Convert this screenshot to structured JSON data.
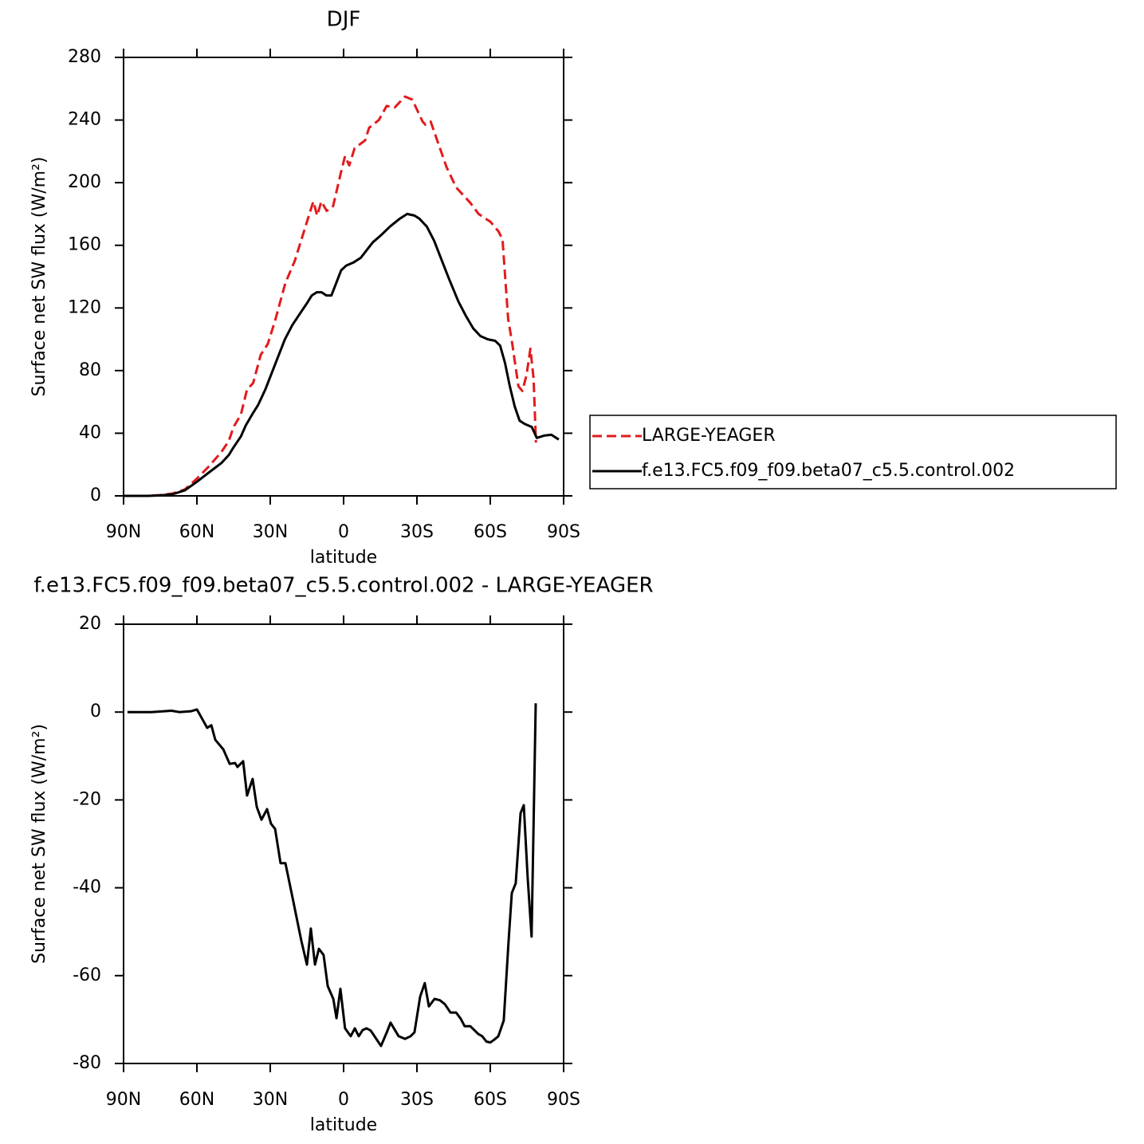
{
  "chart_data": [
    {
      "type": "line",
      "title": "DJF",
      "xlabel": "latitude",
      "ylabel": "Surface net SW flux (W/m²)",
      "xlim": [
        90,
        -90
      ],
      "xticks": [
        {
          "value": 90,
          "label": "90N"
        },
        {
          "value": 60,
          "label": "60N"
        },
        {
          "value": 30,
          "label": "30N"
        },
        0,
        {
          "value": -30,
          "label": "30S"
        },
        {
          "value": -60,
          "label": "60S"
        },
        {
          "value": -90,
          "label": "90S"
        }
      ],
      "ylim": [
        0,
        280
      ],
      "yticks": [
        0,
        40,
        80,
        120,
        160,
        200,
        240,
        280
      ],
      "legend": "right",
      "series": [
        {
          "name": "LARGE-YEAGER",
          "color": "#e31a1c",
          "dash": "dashed",
          "x": [
            90,
            80,
            75,
            70,
            65,
            60,
            55,
            50,
            47,
            45,
            42,
            39.5,
            37,
            33.9,
            31,
            28,
            23.8,
            20,
            17,
            14,
            12.4,
            10.8,
            9.1,
            6.9,
            4.3,
            1,
            -0.6,
            -2.3,
            -4.5,
            -8.8,
            -10.4,
            -14.4,
            -17.6,
            -20.9,
            -25.1,
            -28.1,
            -32.3,
            -33.5,
            -35.6,
            -42.1,
            -46,
            -51.9,
            -55.2,
            -60.1,
            -63.3,
            -65,
            -67.3,
            -68.9,
            -71.5,
            -73.1,
            -74.8,
            -76.4,
            -77.7,
            -78.7
          ],
          "values": [
            0,
            0,
            0.5,
            1.5,
            4,
            11,
            19,
            28,
            35,
            44,
            52,
            68,
            72,
            90,
            97,
            112,
            136,
            150,
            165,
            180,
            188,
            179,
            188,
            182,
            185,
            207,
            217,
            211,
            222,
            227,
            235,
            240,
            249,
            248,
            255,
            253,
            239,
            237,
            239,
            210,
            197,
            187,
            180,
            175,
            169,
            164,
            113,
            98,
            70,
            67,
            77,
            94,
            75,
            34
          ]
        },
        {
          "name": "f.e13.FC5.f09_f09.beta07_c5.5.control.002",
          "color": "#000000",
          "dash": "solid",
          "x": [
            90,
            80,
            75,
            70,
            65,
            60,
            55,
            50,
            47,
            45,
            42,
            40,
            37,
            35,
            32,
            30,
            27,
            24,
            21,
            18,
            15,
            13,
            11,
            9,
            7,
            5,
            3,
            1,
            -1,
            -4,
            -7,
            -10,
            -12,
            -15,
            -19,
            -23,
            -26,
            -29,
            -31,
            -34,
            -37,
            -40,
            -43,
            -47,
            -50,
            -53,
            -56,
            -59,
            -62,
            -64,
            -66,
            -68,
            -70,
            -72,
            -74,
            -77,
            -79,
            -82,
            -85,
            -88
          ],
          "values": [
            0,
            0,
            0.3,
            1,
            3.5,
            9,
            15,
            21,
            26,
            31,
            38,
            45,
            53,
            58,
            68,
            76,
            88,
            100,
            109,
            116,
            123,
            128,
            130,
            130,
            128,
            128,
            136,
            144,
            147,
            149,
            152,
            158,
            162,
            166,
            172,
            177,
            180,
            179,
            177,
            172,
            163,
            151,
            139,
            124,
            115,
            107,
            102,
            100,
            99,
            96,
            85,
            70,
            57,
            48,
            46,
            44,
            37,
            38.5,
            39,
            36
          ]
        }
      ]
    },
    {
      "type": "line",
      "title": "f.e13.FC5.f09_f09.beta07_c5.5.control.002 - LARGE-YEAGER",
      "xlabel": "latitude",
      "ylabel": "Surface net SW flux (W/m²)",
      "xlim": [
        90,
        -90
      ],
      "xticks": [
        {
          "value": 90,
          "label": "90N"
        },
        {
          "value": 60,
          "label": "60N"
        },
        {
          "value": 30,
          "label": "30N"
        },
        0,
        {
          "value": -30,
          "label": "30S"
        },
        {
          "value": -60,
          "label": "60S"
        },
        {
          "value": -90,
          "label": "90S"
        }
      ],
      "ylim": [
        -80,
        20
      ],
      "yticks": [
        -80,
        -60,
        -40,
        -20,
        0,
        20
      ],
      "series": [
        {
          "color": "#000000",
          "dash": "solid",
          "x": [
            88.4,
            78.6,
            70.4,
            67.2,
            62.3,
            60,
            57.4,
            55.8,
            54.1,
            52.5,
            49.2,
            46.6,
            44.4,
            43.4,
            41.1,
            39.5,
            37.2,
            35.5,
            33.6,
            31.3,
            29.7,
            28,
            25.8,
            23.8,
            20.6,
            17.3,
            15,
            13.4,
            11.7,
            10.1,
            8.2,
            6.5,
            4.2,
            2.9,
            1.3,
            -0.6,
            -2.9,
            -4.6,
            -6.2,
            -7.8,
            -9.4,
            -11.1,
            -15.3,
            -17.6,
            -19.2,
            -22.5,
            -25.1,
            -27.4,
            -29,
            -31.3,
            -33.2,
            -34.9,
            -37.2,
            -39.4,
            -41.4,
            -43.7,
            -46,
            -47.9,
            -49.5,
            -51.8,
            -55.1,
            -56.7,
            -58.4,
            -60,
            -61.6,
            -63.3,
            -65.5,
            -67.5,
            -68.8,
            -70.4,
            -72.4,
            -73.7,
            -75.3,
            -76.9,
            -78.6
          ],
          "values": [
            0,
            0,
            0.3,
            0,
            0.2,
            0.6,
            -2,
            -3.6,
            -3,
            -6.3,
            -8.5,
            -11.8,
            -11.6,
            -12.5,
            -11.2,
            -19,
            -15.2,
            -21.6,
            -24.5,
            -22.1,
            -25.4,
            -26.6,
            -34.4,
            -34.4,
            -43,
            -52,
            -57.5,
            -49.3,
            -57.5,
            -53.9,
            -55.3,
            -62.4,
            -65.3,
            -69.7,
            -63,
            -72,
            -73.8,
            -72,
            -73.8,
            -72.4,
            -72,
            -72.5,
            -76,
            -73,
            -70.7,
            -73.8,
            -74.4,
            -73.8,
            -72.9,
            -64.8,
            -61.7,
            -67,
            -65.3,
            -65.6,
            -66.5,
            -68.4,
            -68.4,
            -69.8,
            -71.5,
            -71.5,
            -73.3,
            -73.8,
            -75,
            -75.2,
            -74.6,
            -73.8,
            -70.2,
            -52,
            -41.2,
            -39,
            -23,
            -21.2,
            -37.7,
            -51.1,
            2
          ]
        }
      ]
    }
  ]
}
